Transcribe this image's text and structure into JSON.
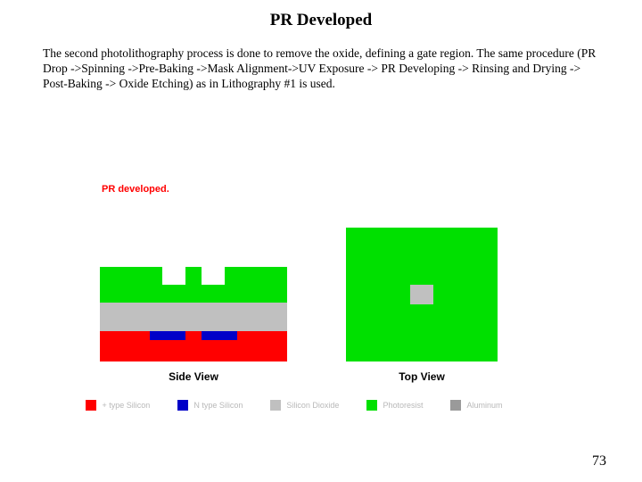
{
  "title": "PR Developed",
  "body": "The second  photolithography process is done  to remove the oxide,  defining a gate region. The same procedure (PR Drop ->Spinning ->Pre-Baking ->Mask Alignment->UV Exposure -> PR Developing -> Rinsing and Drying -> Post-Baking -> Oxide Etching) as in Lithography #1 is used.",
  "pr_label": "PR developed.",
  "pr_label_color": "#ff0000",
  "side_view_label": "Side View",
  "top_view_label": "Top View",
  "page_number": "73",
  "colors": {
    "plus_silicon": "#ff0000",
    "n_silicon": "#0000c8",
    "silicon_dioxide": "#c0c0c0",
    "photoresist": "#00e000",
    "aluminum": "#9a9a9a",
    "background": "#ffffff"
  },
  "legend": [
    {
      "label": "+ type Silicon",
      "color_key": "plus_silicon"
    },
    {
      "label": "N type Silicon",
      "color_key": "n_silicon"
    },
    {
      "label": "Silicon Dioxide",
      "color_key": "silicon_dioxide"
    },
    {
      "label": "Photoresist",
      "color_key": "photoresist"
    },
    {
      "label": "Aluminum",
      "color_key": "aluminum"
    }
  ],
  "diagram": {
    "type": "infographic",
    "side_view": {
      "layers": [
        {
          "name": "photoresist_top",
          "color_key": "photoresist",
          "notches": 2
        },
        {
          "name": "oxide_mid",
          "color_key": "silicon_dioxide"
        },
        {
          "name": "plus_substrate",
          "color_key": "plus_silicon"
        }
      ],
      "implants": {
        "count": 2,
        "color_key": "n_silicon"
      }
    },
    "top_view": {
      "outer_color_key": "photoresist",
      "inner_color_key": "silicon_dioxide"
    }
  }
}
